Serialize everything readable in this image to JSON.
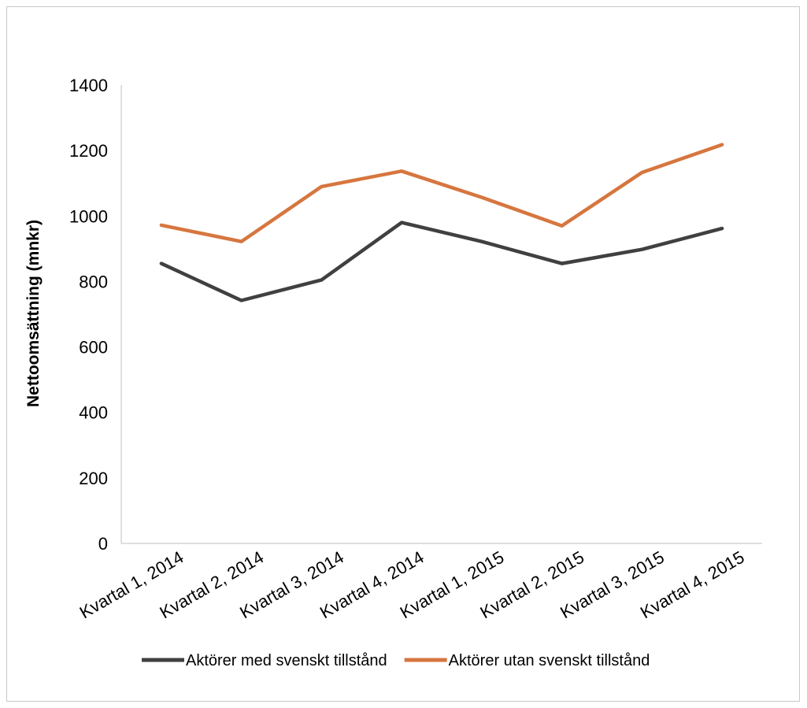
{
  "chart_data": {
    "type": "line",
    "title": "",
    "xlabel": "",
    "ylabel": "Nettoomsättning (mnkr)",
    "categories": [
      "Kvartal 1, 2014",
      "Kvartal 2, 2014",
      "Kvartal 3, 2014",
      "Kvartal 4, 2014",
      "Kvartal 1, 2015",
      "Kvartal 2, 2015",
      "Kvartal 3, 2015",
      "Kvartal 4, 2015"
    ],
    "ylim": [
      0,
      1400
    ],
    "yticks": [
      "0",
      "200",
      "400",
      "600",
      "800",
      "1000",
      "1200",
      "1400"
    ],
    "grid": false,
    "legend_position": "bottom",
    "series": [
      {
        "name": "Aktörer med svenskt tillstånd",
        "color": "#404040",
        "values": [
          855,
          742,
          805,
          980,
          922,
          855,
          898,
          962
        ]
      },
      {
        "name": "Aktörer utan svenskt tillstånd",
        "color": "#d6763f",
        "values": [
          972,
          922,
          1090,
          1137,
          1057,
          970,
          1133,
          1218
        ]
      }
    ]
  }
}
